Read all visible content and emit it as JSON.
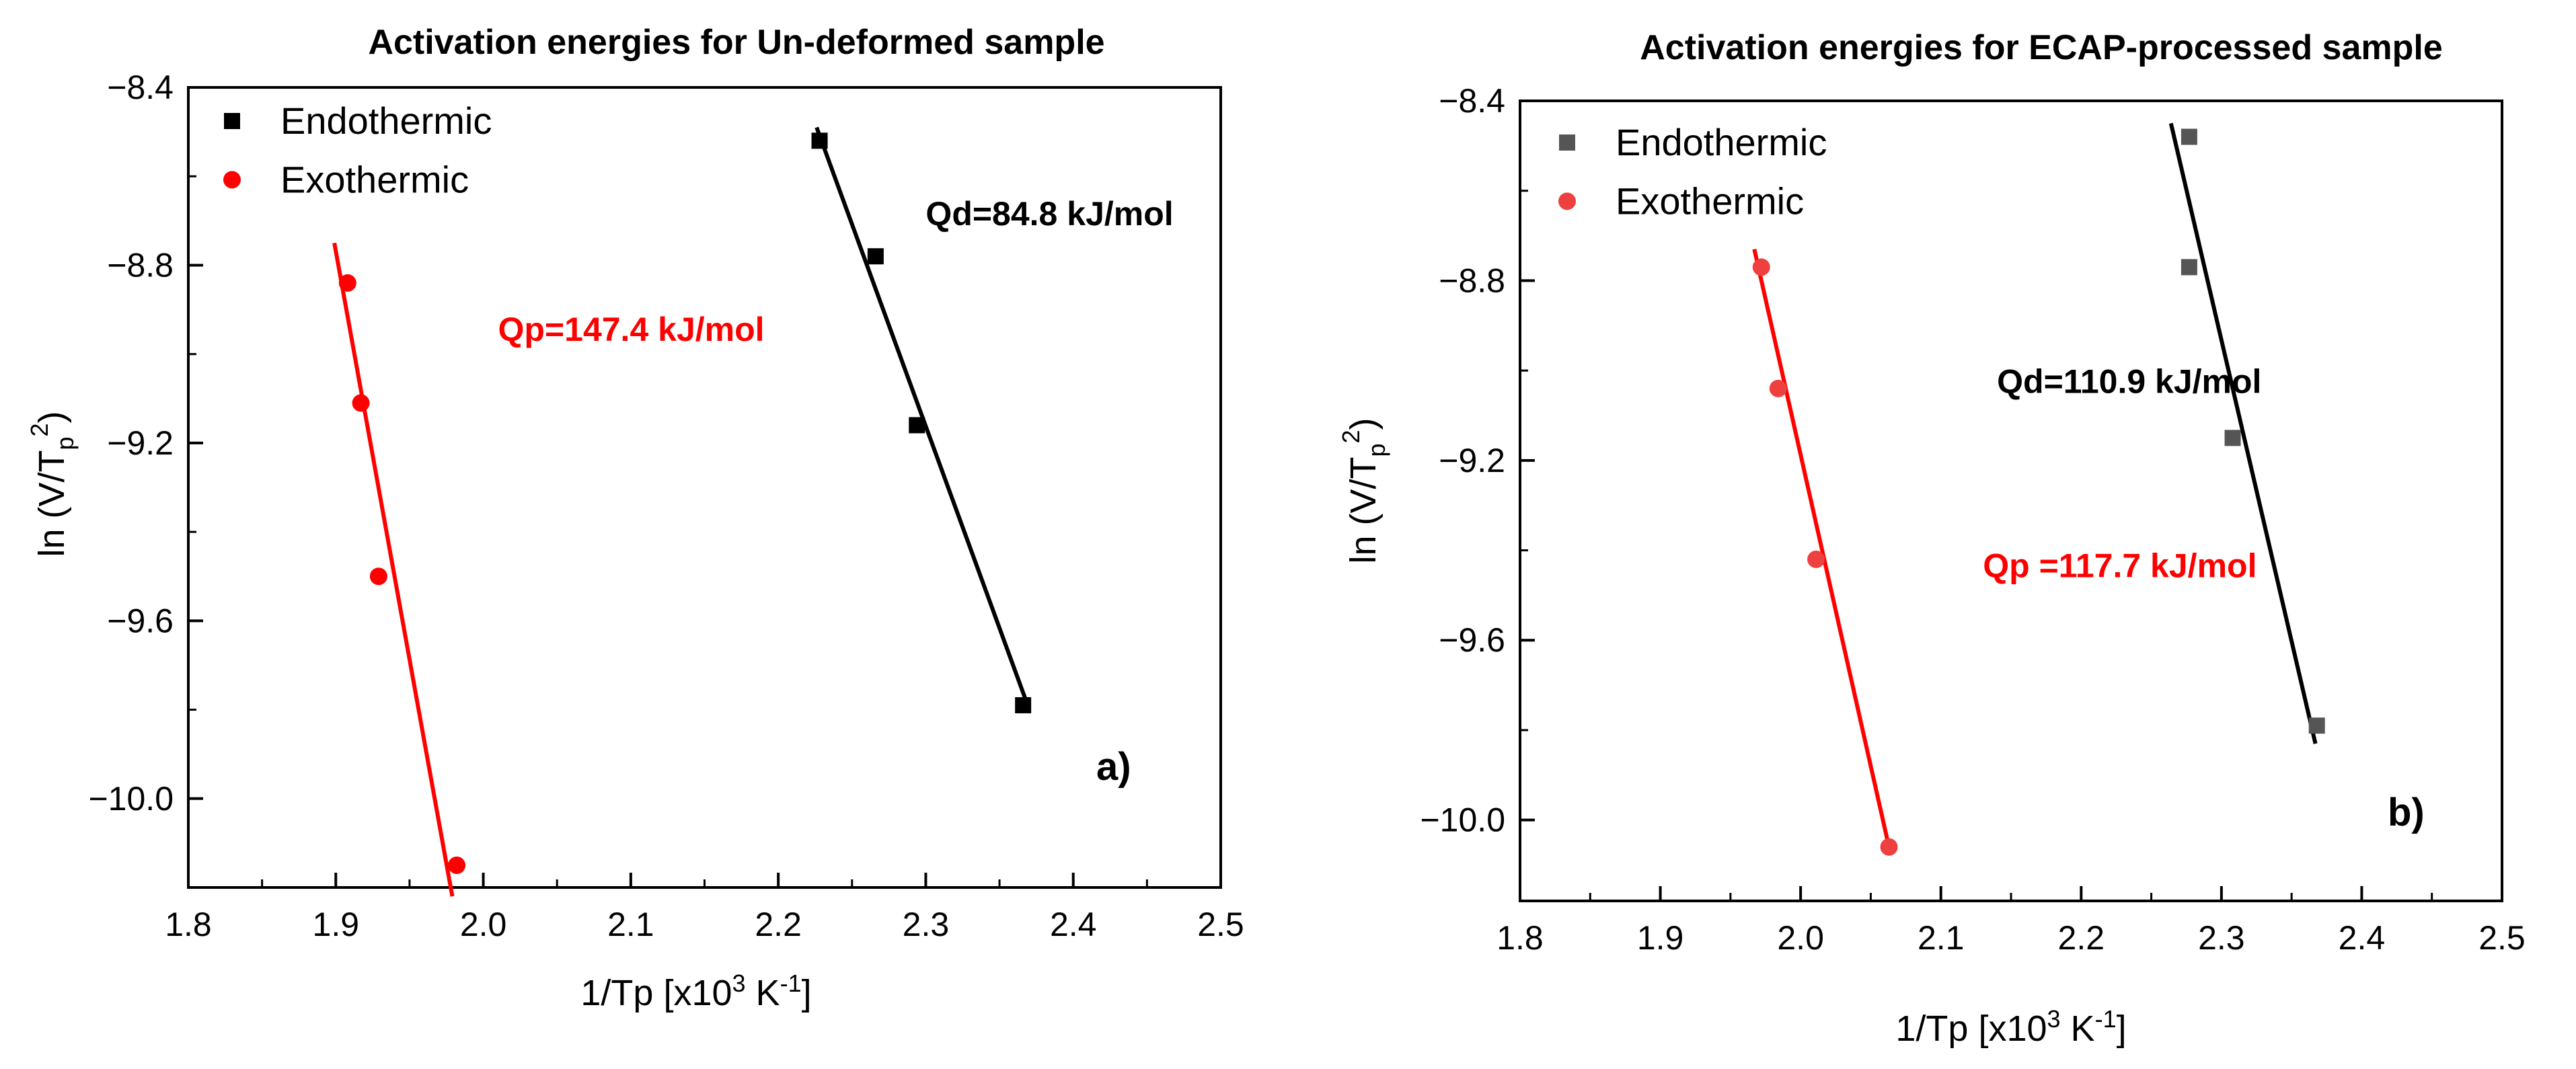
{
  "chart_data": [
    {
      "type": "scatter",
      "panel_label": "a)",
      "title": "Activation energies for Un-deformed sample",
      "xlabel": "1/Tp [x10³ K⁻¹]",
      "ylabel": "ln (V/Tp²)",
      "xlim": [
        1.8,
        2.5
      ],
      "ylim": [
        -10.2,
        -8.4
      ],
      "xticks": [
        1.8,
        1.9,
        2.0,
        2.1,
        2.2,
        2.3,
        2.4,
        2.5
      ],
      "xtick_labels": [
        "1.8",
        "1.9",
        "2.0",
        "2.1",
        "2.2",
        "2.3",
        "2.4",
        "2.5"
      ],
      "yticks": [
        -8.4,
        -8.8,
        -9.2,
        -9.6,
        -10.0
      ],
      "ytick_labels": [
        "−8.4",
        "−8.8",
        "−9.2",
        "−9.6",
        "−10.0"
      ],
      "legend_position": "top-left",
      "series": [
        {
          "name": "Endothermic",
          "color": "#000000",
          "marker": "square",
          "x": [
            2.228,
            2.266,
            2.294,
            2.366
          ],
          "y": [
            -8.52,
            -8.78,
            -9.16,
            -9.79
          ],
          "fit_line": {
            "x": [
              2.226,
              2.368
            ],
            "y": [
              -8.49,
              -9.78
            ]
          }
        },
        {
          "name": "Exothermic",
          "color": "#ff0000",
          "marker": "circle",
          "x": [
            1.908,
            1.917,
            1.929,
            1.982
          ],
          "y": [
            -8.84,
            -9.11,
            -9.5,
            -10.15
          ],
          "fit_line": {
            "x": [
              1.899,
              1.979
            ],
            "y": [
              -8.75,
              -10.22
            ]
          }
        }
      ],
      "annotations": [
        {
          "text": "Qd=84.8 kJ/mol",
          "color": "#000000",
          "x": 2.3,
          "y": -8.71
        },
        {
          "text": "Qp=147.4 kJ/mol",
          "color": "#ff0000",
          "x": 2.01,
          "y": -8.97
        }
      ]
    },
    {
      "type": "scatter",
      "panel_label": "b)",
      "title": "Activation energies for ECAP-processed sample",
      "xlabel": "1/Tp [x10³ K⁻¹]",
      "ylabel": "ln (V/Tp²)",
      "xlim": [
        1.8,
        2.5
      ],
      "ylim": [
        -10.18,
        -8.4
      ],
      "xticks": [
        1.8,
        1.9,
        2.0,
        2.1,
        2.2,
        2.3,
        2.4,
        2.5
      ],
      "xtick_labels": [
        "1.8",
        "1.9",
        "2.0",
        "2.1",
        "2.2",
        "2.3",
        "2.4",
        "2.5"
      ],
      "yticks": [
        -8.4,
        -8.8,
        -9.2,
        -9.6,
        -10.0
      ],
      "ytick_labels": [
        "−8.4",
        "−8.8",
        "−9.2",
        "−9.6",
        "−10.0"
      ],
      "legend_position": "top-left",
      "series": [
        {
          "name": "Endothermic",
          "color": "#555555",
          "marker": "square",
          "x": [
            2.277,
            2.277,
            2.308,
            2.368
          ],
          "y": [
            -8.48,
            -8.77,
            -9.15,
            -9.79
          ],
          "fit_line": {
            "x": [
              2.264,
              2.367
            ],
            "y": [
              -8.45,
              -9.83
            ]
          }
        },
        {
          "name": "Exothermic",
          "color": "#ef4040",
          "marker": "circle",
          "x": [
            1.972,
            1.984,
            2.011,
            2.063
          ],
          "y": [
            -8.77,
            -9.04,
            -9.42,
            -10.06
          ],
          "fit_line": {
            "x": [
              1.967,
              2.063
            ],
            "y": [
              -8.73,
              -10.06
            ]
          }
        }
      ],
      "annotations": [
        {
          "text": "Qd=110.9 kJ/mol",
          "color": "#000000",
          "x": 2.14,
          "y": -9.05
        },
        {
          "text": "Qp =117.7 kJ/mol",
          "color": "#ff0000",
          "x": 2.13,
          "y": -9.46
        }
      ]
    }
  ]
}
